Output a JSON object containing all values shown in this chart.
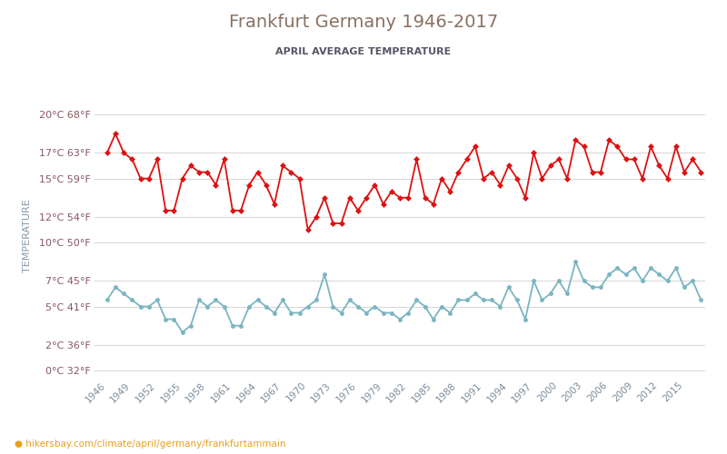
{
  "title": "Frankfurt Germany 1946-2017",
  "subtitle": "APRIL AVERAGE TEMPERATURE",
  "ylabel": "TEMPERATURE",
  "url_text": "hikersbay.com/climate/april/germany/frankfurtammain",
  "title_color": "#8a7060",
  "subtitle_color": "#555555",
  "ylabel_color": "#8899aa",
  "grid_color": "#d8d8d8",
  "bg_color": "#ffffff",
  "night_color": "#7ab5c0",
  "day_color": "#dd1111",
  "years": [
    1946,
    1947,
    1948,
    1949,
    1950,
    1951,
    1952,
    1953,
    1954,
    1955,
    1956,
    1957,
    1958,
    1959,
    1960,
    1961,
    1962,
    1963,
    1964,
    1965,
    1966,
    1967,
    1968,
    1969,
    1970,
    1971,
    1972,
    1973,
    1974,
    1975,
    1976,
    1977,
    1978,
    1979,
    1980,
    1981,
    1982,
    1983,
    1984,
    1985,
    1986,
    1987,
    1988,
    1989,
    1990,
    1991,
    1992,
    1993,
    1994,
    1995,
    1996,
    1997,
    1998,
    1999,
    2000,
    2001,
    2002,
    2003,
    2004,
    2005,
    2006,
    2007,
    2008,
    2009,
    2010,
    2011,
    2012,
    2013,
    2014,
    2015,
    2016,
    2017
  ],
  "day_temps": [
    17.0,
    18.5,
    17.0,
    16.5,
    15.0,
    15.0,
    16.5,
    12.5,
    12.5,
    15.0,
    16.0,
    15.5,
    15.5,
    14.5,
    16.5,
    12.5,
    12.5,
    14.5,
    15.5,
    14.5,
    13.0,
    16.0,
    15.5,
    15.0,
    11.0,
    12.0,
    13.5,
    11.5,
    11.5,
    13.5,
    12.5,
    13.5,
    14.5,
    13.0,
    14.0,
    13.5,
    13.5,
    16.5,
    13.5,
    13.0,
    15.0,
    14.0,
    15.5,
    16.5,
    17.5,
    15.0,
    15.5,
    14.5,
    16.0,
    15.0,
    13.5,
    17.0,
    15.0,
    16.0,
    16.5,
    15.0,
    18.0,
    17.5,
    15.5,
    15.5,
    18.0,
    17.5,
    16.5,
    16.5,
    15.0,
    17.5,
    16.0,
    15.0,
    17.5,
    15.5,
    16.5,
    15.5
  ],
  "night_temps": [
    5.5,
    6.5,
    6.0,
    5.5,
    5.0,
    5.0,
    5.5,
    4.0,
    4.0,
    3.0,
    3.5,
    5.5,
    5.0,
    5.5,
    5.0,
    3.5,
    3.5,
    5.0,
    5.5,
    5.0,
    4.5,
    5.5,
    4.5,
    4.5,
    5.0,
    5.5,
    7.5,
    5.0,
    4.5,
    5.5,
    5.0,
    4.5,
    5.0,
    4.5,
    4.5,
    4.0,
    4.5,
    5.5,
    5.0,
    4.0,
    5.0,
    4.5,
    5.5,
    5.5,
    6.0,
    5.5,
    5.5,
    5.0,
    6.5,
    5.5,
    4.0,
    7.0,
    5.5,
    6.0,
    7.0,
    6.0,
    8.5,
    7.0,
    6.5,
    6.5,
    7.5,
    8.0,
    7.5,
    8.0,
    7.0,
    8.0,
    7.5,
    7.0,
    8.0,
    6.5,
    7.0,
    5.5
  ],
  "yticks_celsius": [
    0,
    2,
    5,
    7,
    10,
    12,
    15,
    17,
    20
  ],
  "yticks_fahrenheit": [
    32,
    36,
    41,
    45,
    50,
    54,
    59,
    63,
    68
  ],
  "xtick_years": [
    1946,
    1949,
    1952,
    1955,
    1958,
    1961,
    1964,
    1967,
    1970,
    1973,
    1976,
    1979,
    1982,
    1985,
    1988,
    1991,
    1994,
    1997,
    2000,
    2003,
    2006,
    2009,
    2012,
    2015
  ],
  "ymin": -0.5,
  "ymax": 21.5
}
